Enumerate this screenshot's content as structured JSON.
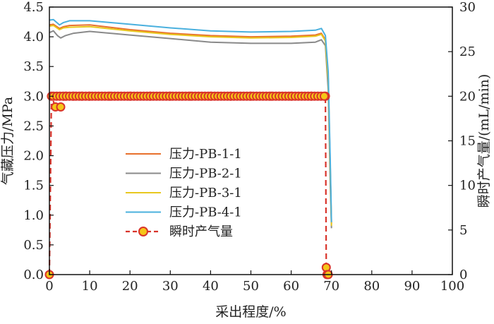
{
  "chart_data": {
    "type": "line",
    "xlabel": "采出程度/%",
    "ylabel_left": "气藏压力/MPa",
    "ylabel_right": "瞬时产气量/(mL/min)",
    "xlim": [
      0,
      100
    ],
    "ylim_left": [
      0,
      4.5
    ],
    "ylim_right": [
      0,
      30
    ],
    "x_ticks": [
      "0",
      "10",
      "20",
      "30",
      "40",
      "50",
      "60",
      "70",
      "80",
      "90",
      "100"
    ],
    "y_left_ticks": [
      "0.0",
      "0.5",
      "1.0",
      "1.5",
      "2.0",
      "2.5",
      "3.0",
      "3.5",
      "4.0",
      "4.5"
    ],
    "y_right_ticks": [
      "0",
      "5",
      "10",
      "15",
      "20",
      "25",
      "30"
    ],
    "grid": false,
    "legend_position": "center-left",
    "series": [
      {
        "name": "压力-PB-1-1",
        "axis": "left",
        "color": "#e8712d",
        "x": [
          0,
          1,
          2.5,
          3.5,
          5,
          10,
          20,
          30,
          40,
          50,
          60,
          66,
          67.5,
          68.5,
          69.2,
          69.7,
          70
        ],
        "y": [
          4.2,
          4.21,
          4.14,
          4.17,
          4.19,
          4.2,
          4.12,
          4.06,
          4.02,
          4.0,
          4.01,
          4.03,
          4.06,
          3.95,
          3.3,
          1.8,
          0.85
        ]
      },
      {
        "name": "压力-PB-2-1",
        "axis": "left",
        "color": "#8a8a8a",
        "x": [
          0,
          1,
          2,
          2.8,
          4,
          6,
          10,
          20,
          30,
          40,
          50,
          60,
          66,
          67.5,
          68.5,
          69.2,
          69.7,
          70
        ],
        "y": [
          4.07,
          4.1,
          4.02,
          3.98,
          4.02,
          4.06,
          4.09,
          4.03,
          3.97,
          3.91,
          3.89,
          3.89,
          3.91,
          3.95,
          3.85,
          3.1,
          1.5,
          0.78
        ]
      },
      {
        "name": "压力-PB-3-1",
        "axis": "left",
        "color": "#e8c81f",
        "x": [
          0,
          1,
          2.5,
          3.5,
          5,
          10,
          20,
          30,
          40,
          50,
          60,
          66,
          67.5,
          68.5,
          69.2,
          69.7,
          70
        ],
        "y": [
          4.18,
          4.19,
          4.12,
          4.15,
          4.16,
          4.17,
          4.1,
          4.04,
          4.0,
          3.98,
          3.99,
          4.01,
          4.04,
          3.93,
          3.25,
          1.7,
          0.82
        ]
      },
      {
        "name": "压力-PB-4-1",
        "axis": "left",
        "color": "#4ab0de",
        "x": [
          0,
          1,
          2.5,
          3.5,
          5,
          10,
          20,
          30,
          40,
          50,
          60,
          66,
          67.5,
          68.5,
          69.2,
          69.7,
          70
        ],
        "y": [
          4.28,
          4.29,
          4.2,
          4.24,
          4.27,
          4.27,
          4.21,
          4.15,
          4.1,
          4.08,
          4.09,
          4.11,
          4.14,
          4.02,
          3.4,
          1.9,
          0.88
        ]
      },
      {
        "name": "瞬时产气量",
        "axis": "right",
        "color": "#d9342b",
        "marker_fill": "#f5c518",
        "x": [
          0,
          0.5,
          1.5,
          2.8,
          4,
          6,
          8,
          10,
          15,
          20,
          25,
          30,
          35,
          40,
          45,
          50,
          55,
          60,
          65,
          68.5,
          68.7,
          68.9,
          69.2
        ],
        "y": [
          0,
          20,
          18.8,
          18.8,
          20,
          20,
          20,
          20,
          20,
          20,
          20,
          20,
          20,
          20,
          20,
          20,
          20,
          20,
          20,
          20,
          0.8,
          0,
          0
        ]
      }
    ]
  }
}
